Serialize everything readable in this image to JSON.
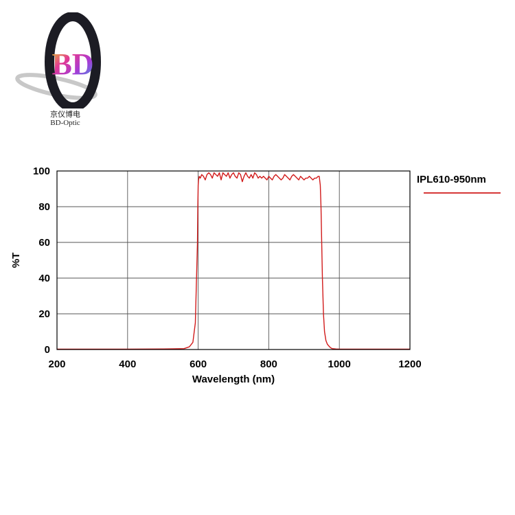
{
  "logo": {
    "mark": "BD",
    "name_cn": "京仪博电",
    "name_en": "BD-Optic"
  },
  "chart_data": {
    "type": "line",
    "xlabel": "Wavelength (nm)",
    "ylabel": "%T",
    "xlim": [
      200,
      1200
    ],
    "ylim": [
      0,
      100
    ],
    "xticks": [
      200,
      400,
      600,
      800,
      1000,
      1200
    ],
    "yticks": [
      0,
      20,
      40,
      60,
      80,
      100
    ],
    "grid": true,
    "legend_position": "top-right",
    "series": [
      {
        "name": "IPL610-950nm",
        "color": "#d11a1a",
        "x": [
          200,
          300,
          400,
          500,
          560,
          575,
          585,
          592,
          596,
          598,
          599,
          600,
          601,
          603,
          606,
          610,
          615,
          620,
          625,
          630,
          635,
          640,
          645,
          650,
          655,
          660,
          665,
          670,
          675,
          680,
          685,
          690,
          695,
          700,
          705,
          710,
          715,
          720,
          725,
          730,
          735,
          740,
          745,
          750,
          755,
          760,
          765,
          770,
          775,
          780,
          785,
          790,
          795,
          800,
          805,
          810,
          815,
          820,
          825,
          830,
          835,
          840,
          845,
          850,
          855,
          860,
          865,
          870,
          875,
          880,
          885,
          890,
          895,
          900,
          905,
          910,
          915,
          920,
          925,
          930,
          935,
          940,
          943,
          946,
          948,
          950,
          952,
          955,
          958,
          962,
          966,
          970,
          975,
          980,
          990,
          1000,
          1050,
          1100,
          1150,
          1200
        ],
        "y": [
          0.2,
          0.2,
          0.2,
          0.3,
          0.5,
          1.5,
          4,
          15,
          45,
          60,
          80,
          92,
          95,
          97,
          96,
          98,
          97,
          95,
          98,
          99,
          98,
          96,
          99,
          98,
          97,
          99,
          95,
          99,
          98,
          97,
          99,
          96,
          98,
          99,
          97,
          96,
          99,
          98,
          94,
          97,
          99,
          97,
          96,
          98,
          96,
          99,
          98,
          96,
          97,
          96,
          97,
          96,
          95,
          97,
          96,
          95,
          97,
          98,
          97,
          96,
          95,
          96,
          98,
          97,
          96,
          95,
          97,
          98,
          97,
          96,
          95,
          97,
          96,
          95,
          96,
          96,
          97,
          96,
          95,
          96,
          96,
          97,
          97,
          92,
          80,
          60,
          40,
          20,
          10,
          5,
          3,
          2,
          1,
          0.5,
          0.3,
          0.2,
          0.2,
          0.2,
          0.2,
          0.2
        ]
      }
    ]
  }
}
